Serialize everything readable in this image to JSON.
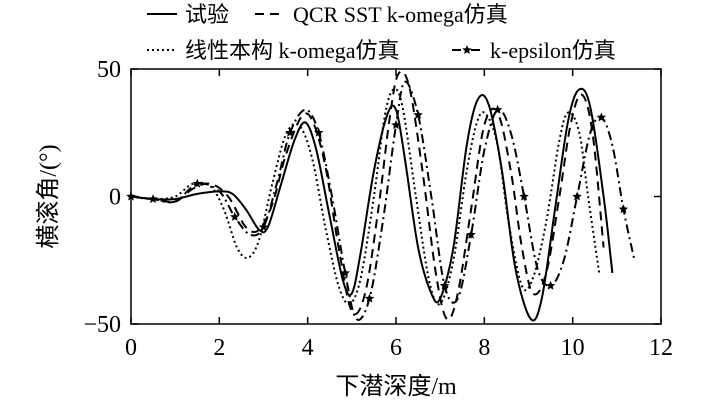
{
  "chart_data": {
    "type": "line",
    "title": "",
    "xlabel": "下潜深度/m",
    "ylabel": "横滚角/(°)",
    "xlim": [
      0,
      12
    ],
    "ylim": [
      -50,
      50
    ],
    "xticks": [
      "0",
      "2",
      "4",
      "6",
      "8",
      "10",
      "12"
    ],
    "yticks": [
      "−50",
      "0",
      "50"
    ],
    "grid": false,
    "legend_position": "top",
    "series": [
      {
        "name": "试验",
        "style": "solid",
        "x": [
          0,
          0.5,
          1.0,
          1.5,
          2.0,
          2.3,
          2.6,
          2.9,
          3.1,
          3.4,
          3.7,
          3.95,
          4.2,
          4.5,
          4.8,
          5.0,
          5.2,
          5.5,
          5.8,
          6.0,
          6.2,
          6.5,
          6.8,
          7.0,
          7.3,
          7.6,
          7.85,
          8.1,
          8.4,
          8.7,
          9.05,
          9.3,
          9.6,
          9.9,
          10.15,
          10.4,
          10.7,
          10.9
        ],
        "y": [
          0,
          -1,
          -1,
          1,
          2,
          1,
          -5,
          -13,
          -12,
          5,
          22,
          29,
          18,
          -8,
          -33,
          -38,
          -22,
          10,
          32,
          34,
          15,
          -20,
          -38,
          -40,
          -20,
          20,
          38,
          36,
          10,
          -28,
          -48,
          -40,
          -5,
          30,
          42,
          35,
          0,
          -30
        ]
      },
      {
        "name": "QCR SST k-omega仿真",
        "style": "dashed",
        "x": [
          0,
          0.5,
          1.0,
          1.4,
          1.8,
          2.2,
          2.6,
          2.9,
          3.2,
          3.5,
          3.85,
          4.1,
          4.4,
          4.7,
          5.0,
          5.3,
          5.6,
          5.85,
          6.05,
          6.3,
          6.6,
          6.9,
          7.15,
          7.4,
          7.7,
          8.0,
          8.3,
          8.6,
          8.85,
          9.1,
          9.4,
          9.7,
          9.95,
          10.2,
          10.45,
          10.7
        ],
        "y": [
          0,
          -1,
          -2,
          3,
          5,
          0,
          -12,
          -13,
          -3,
          16,
          31,
          30,
          12,
          -20,
          -45,
          -38,
          -5,
          30,
          48,
          43,
          10,
          -30,
          -48,
          -38,
          -5,
          28,
          33,
          10,
          -20,
          -38,
          -30,
          0,
          28,
          40,
          25,
          -20
        ]
      },
      {
        "name": "线性本构 k-omega仿真",
        "style": "dotted",
        "x": [
          0,
          0.5,
          1.0,
          1.4,
          1.8,
          2.1,
          2.4,
          2.65,
          2.9,
          3.2,
          3.5,
          3.8,
          4.1,
          4.4,
          4.7,
          4.95,
          5.2,
          5.5,
          5.75,
          5.95,
          6.15,
          6.45,
          6.75,
          7.0,
          7.3,
          7.6,
          7.85,
          8.05,
          8.3,
          8.55,
          8.85,
          9.1,
          9.4,
          9.7,
          9.9,
          10.15,
          10.35,
          10.6
        ],
        "y": [
          0,
          -1,
          0,
          5,
          4,
          -5,
          -20,
          -24,
          -17,
          5,
          24,
          28,
          15,
          -12,
          -35,
          -42,
          -32,
          0,
          32,
          42,
          35,
          0,
          -33,
          -42,
          -25,
          10,
          30,
          32,
          20,
          -10,
          -35,
          -32,
          -10,
          22,
          33,
          25,
          0,
          -30
        ]
      },
      {
        "name": "k-epsilon仿真",
        "style": "dashdot-star",
        "x": [
          0,
          0.5,
          1.0,
          1.5,
          2.0,
          2.35,
          2.7,
          3.0,
          3.3,
          3.6,
          3.95,
          4.25,
          4.55,
          4.85,
          5.1,
          5.4,
          5.7,
          6.0,
          6.2,
          6.5,
          6.8,
          7.1,
          7.4,
          7.7,
          8.0,
          8.3,
          8.6,
          8.9,
          9.2,
          9.5,
          9.8,
          10.1,
          10.4,
          10.65,
          10.9,
          11.15,
          11.4
        ],
        "y": [
          0,
          -1,
          -2,
          5,
          2,
          -8,
          -15,
          -12,
          5,
          25,
          34,
          25,
          0,
          -30,
          -48,
          -40,
          -10,
          28,
          45,
          32,
          0,
          -35,
          -40,
          -15,
          18,
          34,
          25,
          0,
          -28,
          -35,
          -25,
          0,
          25,
          31,
          20,
          -5,
          -25
        ]
      }
    ]
  }
}
